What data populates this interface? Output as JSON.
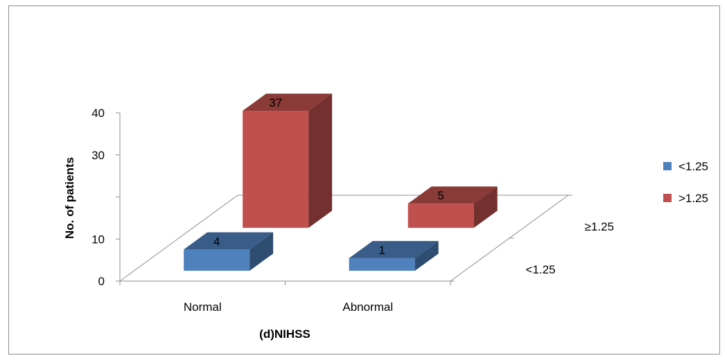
{
  "chart_data": {
    "type": "bar",
    "variant": "3d-column",
    "categories": [
      "Normal",
      "Abnormal"
    ],
    "series": [
      {
        "name": "<1.25",
        "values": [
          4,
          1
        ],
        "color": "#4f81bd"
      },
      {
        "name": ">1.25",
        "values": [
          37,
          5
        ],
        "color": "#c0504d"
      }
    ],
    "depth_labels": [
      "≥1.25",
      "<1.25"
    ],
    "yticks": [
      0,
      10,
      30,
      40
    ],
    "ylim": [
      0,
      40
    ],
    "xlabel": "(d)NIHSS",
    "ylabel": "No. of patients",
    "title": "",
    "grid": false,
    "legend": "right"
  }
}
